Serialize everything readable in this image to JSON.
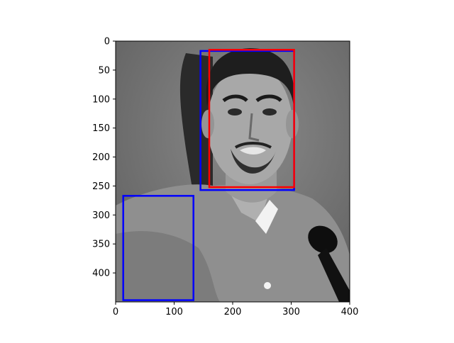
{
  "image": {
    "semantic": "grayscale-portrait-photo",
    "subject": "man with short dark hair and goatee wearing collared shirt, microphone at lower right",
    "extent": {
      "x": [
        0,
        400
      ],
      "y": [
        0,
        450
      ]
    },
    "y_inverted": true
  },
  "axes": {
    "x_ticks": [
      0,
      100,
      200,
      300,
      400
    ],
    "y_ticks": [
      0,
      50,
      100,
      150,
      200,
      250,
      300,
      350,
      400
    ],
    "grid": false
  },
  "boxes": [
    {
      "label": "blue-box-face",
      "color": "#0000ff",
      "x0": 145,
      "y0": 17,
      "x1": 305,
      "y1": 257
    },
    {
      "label": "red-box-face",
      "color": "#ff0000",
      "x0": 160,
      "y0": 15,
      "x1": 305,
      "y1": 252
    },
    {
      "label": "blue-box-shoulder",
      "color": "#0000ff",
      "x0": 13,
      "y0": 267,
      "x1": 133,
      "y1": 447
    }
  ]
}
